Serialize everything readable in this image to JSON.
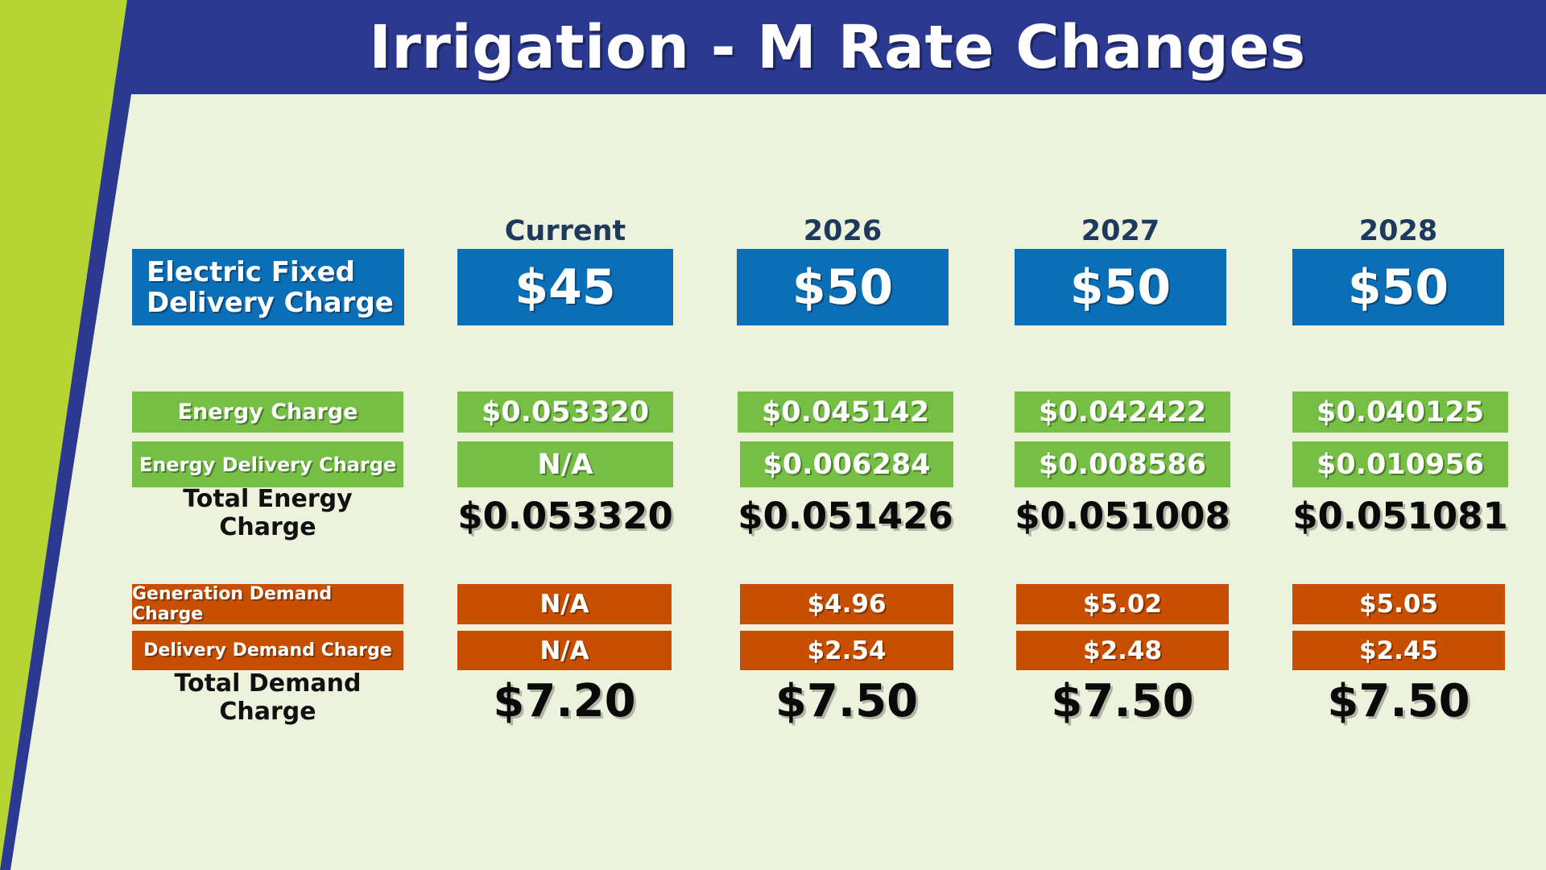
{
  "title": "Irrigation - M Rate Changes",
  "colors": {
    "title_bar": "#2b3990",
    "accent_lime": "#b6d432",
    "background": "#edf2dd",
    "fixed_boxes": "#0b6fb8",
    "energy_boxes": "#74bf44",
    "demand_boxes": "#c94f00"
  },
  "columns": [
    "Current",
    "2026",
    "2027",
    "2028"
  ],
  "fixed_delivery": {
    "label_line1": "Electric Fixed",
    "label_line2": "Delivery Charge",
    "values": [
      "$45",
      "$50",
      "$50",
      "$50"
    ]
  },
  "energy_charge": {
    "label": "Energy Charge",
    "values": [
      "$0.053320",
      "$0.045142",
      "$0.042422",
      "$0.040125"
    ]
  },
  "energy_delivery_charge": {
    "label": "Energy Delivery Charge",
    "values": [
      "N/A",
      "$0.006284",
      "$0.008586",
      "$0.010956"
    ]
  },
  "total_energy_charge": {
    "label": "Total Energy Charge",
    "values": [
      "$0.053320",
      "$0.051426",
      "$0.051008",
      "$0.051081"
    ]
  },
  "generation_demand_charge": {
    "label": "Generation Demand Charge",
    "values": [
      "N/A",
      "$4.96",
      "$5.02",
      "$5.05"
    ]
  },
  "delivery_demand_charge": {
    "label": "Delivery Demand Charge",
    "values": [
      "N/A",
      "$2.54",
      "$2.48",
      "$2.45"
    ]
  },
  "total_demand_charge": {
    "label": "Total Demand Charge",
    "values": [
      "$7.20",
      "$7.50",
      "$7.50",
      "$7.50"
    ]
  }
}
